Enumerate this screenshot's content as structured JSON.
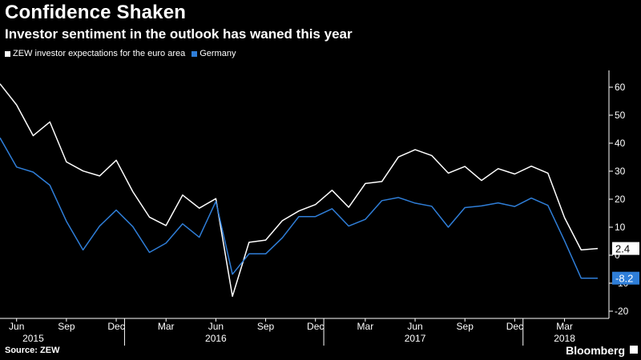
{
  "title": "Confidence Shaken",
  "subtitle": "Investor sentiment in the outlook has waned this year",
  "source": "Source: ZEW",
  "brand": "Bloomberg",
  "colors": {
    "euro": "#ffffff",
    "germany": "#2f7ed8",
    "background": "#000000"
  },
  "chart_data": {
    "type": "line",
    "x": [
      "2015-05",
      "2015-06",
      "2015-07",
      "2015-08",
      "2015-09",
      "2015-10",
      "2015-11",
      "2015-12",
      "2016-01",
      "2016-02",
      "2016-03",
      "2016-04",
      "2016-05",
      "2016-06",
      "2016-07",
      "2016-08",
      "2016-09",
      "2016-10",
      "2016-11",
      "2016-12",
      "2017-01",
      "2017-02",
      "2017-03",
      "2017-04",
      "2017-05",
      "2017-06",
      "2017-07",
      "2017-08",
      "2017-09",
      "2017-10",
      "2017-11",
      "2017-12",
      "2018-01",
      "2018-02",
      "2018-03",
      "2018-04",
      "2018-05"
    ],
    "series": [
      {
        "name": "ZEW investor expectations for the euro area",
        "color": "#ffffff",
        "values": [
          61.2,
          53.7,
          42.7,
          47.6,
          33.3,
          30.1,
          28.3,
          33.9,
          22.7,
          13.6,
          10.6,
          21.5,
          16.8,
          20.2,
          -14.7,
          4.6,
          5.4,
          12.3,
          15.8,
          18.1,
          23.2,
          17.1,
          25.6,
          26.3,
          35.1,
          37.7,
          35.6,
          29.3,
          31.7,
          26.7,
          30.9,
          29.0,
          31.8,
          29.3,
          13.4,
          1.9,
          2.4
        ]
      },
      {
        "name": "Germany",
        "color": "#2f7ed8",
        "values": [
          41.9,
          31.5,
          29.7,
          25.0,
          12.1,
          1.9,
          10.4,
          16.1,
          10.2,
          1.0,
          4.3,
          11.2,
          6.4,
          19.2,
          -6.8,
          0.5,
          0.5,
          6.2,
          13.8,
          13.8,
          16.6,
          10.4,
          12.8,
          19.5,
          20.6,
          18.6,
          17.5,
          10.0,
          17.0,
          17.6,
          18.7,
          17.4,
          20.4,
          17.8,
          5.1,
          -8.2,
          -8.2
        ]
      }
    ],
    "xtick_labels": [
      "Jun",
      "Sep",
      "Dec",
      "Mar",
      "Jun",
      "Sep",
      "Dec",
      "Mar",
      "Jun",
      "Sep",
      "Dec",
      "Mar"
    ],
    "xtick_months": [
      "2015-06",
      "2015-09",
      "2015-12",
      "2016-03",
      "2016-06",
      "2016-09",
      "2016-12",
      "2017-03",
      "2017-06",
      "2017-09",
      "2017-12",
      "2018-03"
    ],
    "year_labels": [
      "2015",
      "2016",
      "2017",
      "2018"
    ],
    "year_label_months": [
      "2015-07",
      "2016-06",
      "2017-06",
      "2018-03"
    ],
    "year_boundaries": [
      "2016-01",
      "2017-01",
      "2018-01"
    ],
    "ylim": [
      -20,
      60
    ],
    "yticks": [
      60,
      50,
      40,
      30,
      20,
      10,
      0,
      -10,
      -20
    ],
    "end_labels": [
      "2.4",
      "-8.2"
    ],
    "grid": false,
    "axis_side": "right",
    "legend_position": "top-left"
  }
}
